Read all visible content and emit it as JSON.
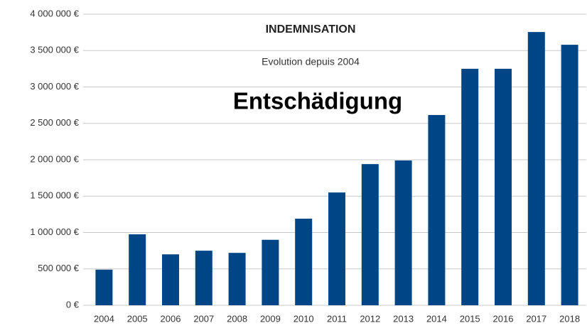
{
  "chart_data": {
    "type": "bar",
    "title": "INDEMNISATION",
    "subtitle": "Evolution depuis 2004",
    "annotation": "Entschädigung",
    "categories": [
      "2004",
      "2005",
      "2006",
      "2007",
      "2008",
      "2009",
      "2010",
      "2011",
      "2012",
      "2013",
      "2014",
      "2015",
      "2016",
      "2017",
      "2018"
    ],
    "values": [
      490000,
      975000,
      700000,
      750000,
      720000,
      900000,
      1190000,
      1550000,
      1940000,
      1990000,
      2615000,
      3250000,
      3250000,
      3755000,
      3580000
    ],
    "color": "#004586",
    "ylim": [
      0,
      4000000
    ],
    "yticks": [
      {
        "value": 0,
        "label": "0 €"
      },
      {
        "value": 500000,
        "label": "500 000 €"
      },
      {
        "value": 1000000,
        "label": "1 000 000 €"
      },
      {
        "value": 1500000,
        "label": "1 500 000 €"
      },
      {
        "value": 2000000,
        "label": "2 000 000 €"
      },
      {
        "value": 2500000,
        "label": "2 500 000 €"
      },
      {
        "value": 3000000,
        "label": "3 000 000 €"
      },
      {
        "value": 3500000,
        "label": "3 500 000 €"
      },
      {
        "value": 4000000,
        "label": "4 000 000 €"
      }
    ],
    "grid": true
  }
}
